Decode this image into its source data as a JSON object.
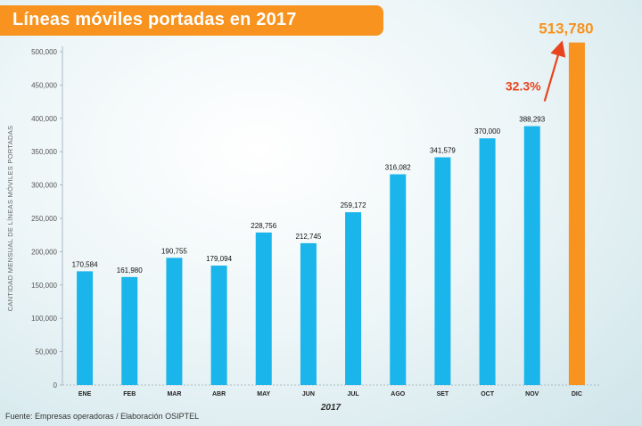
{
  "title": "Líneas móviles portadas en 2017",
  "source": "Fuente: Empresas operadoras / Elaboración OSIPTEL",
  "colors": {
    "bar": "#1ab5ea",
    "highlight": "#f7931e",
    "arrow": "#e8451e"
  },
  "chart_data": {
    "type": "bar",
    "title": "Líneas móviles portadas en 2017",
    "xlabel": "2017",
    "ylabel": "CANTIDAD MENSUAL DE LÍNEAS MÓVILES PORTADAS",
    "categories": [
      "ENE",
      "FEB",
      "MAR",
      "ABR",
      "MAY",
      "JUN",
      "JUL",
      "AGO",
      "SET",
      "OCT",
      "NOV",
      "DIC"
    ],
    "values": [
      170584,
      161980,
      190755,
      179094,
      228756,
      212745,
      259172,
      316082,
      341579,
      370000,
      388293,
      513780
    ],
    "labels": [
      "170,584",
      "161,980",
      "190,755",
      "179,094",
      "228,756",
      "212,745",
      "259,172",
      "316,082",
      "341,579",
      "370,000",
      "388,293",
      "513,780"
    ],
    "ylim": [
      0,
      500000
    ],
    "yticks": [
      0,
      50000,
      100000,
      150000,
      200000,
      250000,
      300000,
      350000,
      400000,
      450000,
      500000
    ],
    "ytick_labels": [
      "0",
      "50,000",
      "100,000",
      "150,000",
      "200,000",
      "250,000",
      "300,000",
      "350,000",
      "400,000",
      "450,000",
      "500,000"
    ],
    "highlight_index": 11,
    "annotation": "32.3%",
    "grid": false,
    "legend": "none"
  }
}
